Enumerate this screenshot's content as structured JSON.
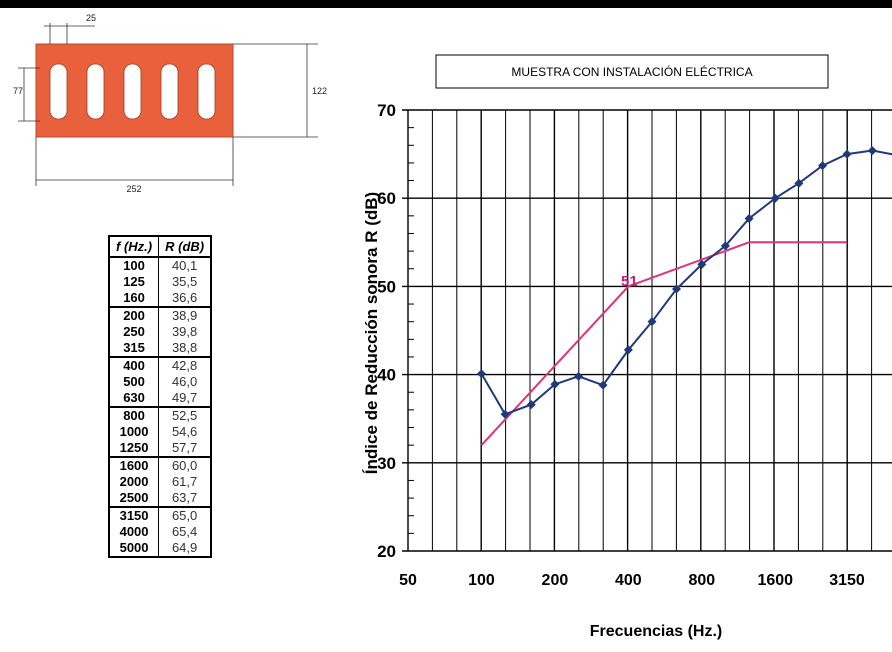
{
  "drawing": {
    "dim_slot_spacing": "25",
    "dim_slot_height": "77",
    "dim_height": "122",
    "dim_length": "252",
    "brick_color": "#e8603c"
  },
  "table": {
    "headers": [
      "f (Hz.)",
      "R (dB)"
    ],
    "groups": [
      [
        [
          "100",
          "40,1"
        ],
        [
          "125",
          "35,5"
        ],
        [
          "160",
          "36,6"
        ]
      ],
      [
        [
          "200",
          "38,9"
        ],
        [
          "250",
          "39,8"
        ],
        [
          "315",
          "38,8"
        ]
      ],
      [
        [
          "400",
          "42,8"
        ],
        [
          "500",
          "46,0"
        ],
        [
          "630",
          "49,7"
        ]
      ],
      [
        [
          "800",
          "52,5"
        ],
        [
          "1000",
          "54,6"
        ],
        [
          "1250",
          "57,7"
        ]
      ],
      [
        [
          "1600",
          "60,0"
        ],
        [
          "2000",
          "61,7"
        ],
        [
          "2500",
          "63,7"
        ]
      ],
      [
        [
          "3150",
          "65,0"
        ],
        [
          "4000",
          "65,4"
        ],
        [
          "5000",
          "64,9"
        ]
      ]
    ]
  },
  "chart_data": {
    "type": "line",
    "title": "MUESTRA CON INSTALACIÓN ELÉCTRICA",
    "xlabel": "Frecuencias (Hz.)",
    "ylabel": "Índice de Reducción sonora R (dB)",
    "x_tick_labels": [
      "50",
      "100",
      "200",
      "400",
      "800",
      "1600",
      "3150"
    ],
    "y_tick_labels": [
      "20",
      "30",
      "40",
      "50",
      "60",
      "70"
    ],
    "ylim": [
      20,
      70
    ],
    "x_scale": "log (third-octave bands)",
    "grid": true,
    "x": [
      100,
      125,
      160,
      200,
      250,
      315,
      400,
      500,
      630,
      800,
      1000,
      1250,
      1600,
      2000,
      2500,
      3150,
      4000,
      5000
    ],
    "series": [
      {
        "values": [
          40.1,
          35.5,
          36.6,
          38.9,
          39.8,
          38.8,
          42.8,
          46.0,
          49.7,
          52.5,
          54.6,
          57.7,
          60.0,
          61.7,
          63.7,
          65.0,
          65.4,
          64.9
        ],
        "color": "#1f3a7a"
      },
      {
        "x": [
          100,
          400,
          1250,
          3150
        ],
        "values": [
          32,
          50,
          55,
          55
        ],
        "color": "#e0337a"
      }
    ],
    "annotation": "51"
  }
}
